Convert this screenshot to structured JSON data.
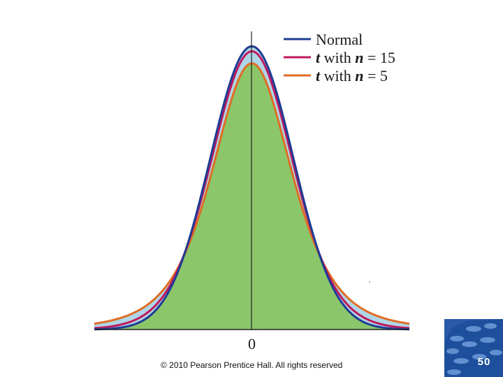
{
  "chart_data": {
    "type": "area",
    "title": "",
    "xlabel": "",
    "ylabel": "",
    "xlim": [
      -3.8,
      3.8
    ],
    "ylim": [
      0,
      0.42
    ],
    "x_ticks": [
      {
        "value": 0,
        "label": "0"
      }
    ],
    "legend_position": "top-right",
    "fill_colors": {
      "base": "#8bc66b",
      "band": "#aed6e6"
    },
    "series": [
      {
        "name_prefix": "",
        "name_var": "",
        "name_suffix": "Normal",
        "label": "Normal",
        "distribution": "normal",
        "df": null,
        "color": "#1e3c94",
        "peak": 0.399
      },
      {
        "name_prefix": "t",
        "name_mid": " with ",
        "name_var": "n",
        "name_suffix": " = 15",
        "label": "t with n = 15",
        "distribution": "t",
        "df": 14,
        "color": "#c0185e",
        "peak": 0.392
      },
      {
        "name_prefix": "t",
        "name_mid": " with ",
        "name_var": "n",
        "name_suffix": " = 5",
        "label": "t with n = 5",
        "distribution": "t",
        "df": 4,
        "color": "#e06d24",
        "peak": 0.375
      }
    ]
  },
  "footer": {
    "copyright": "© 2010 Pearson Prentice Hall. All rights reserved",
    "slide_number": "50"
  },
  "colors": {
    "badge": "#1e4f9c",
    "axis": "#222222"
  }
}
